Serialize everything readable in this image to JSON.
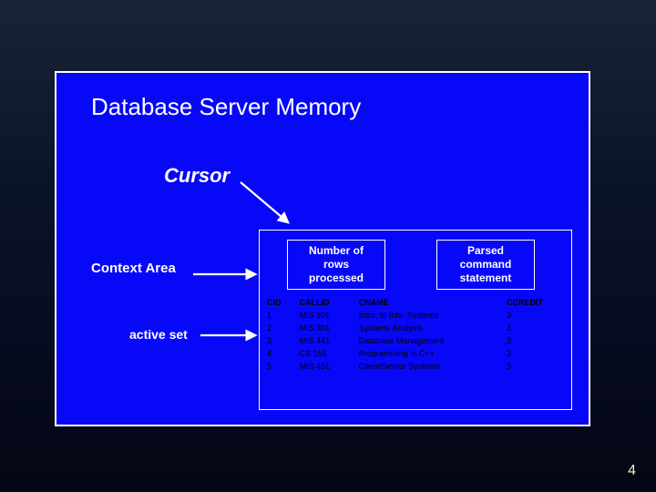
{
  "slide": {
    "title": "Database Server Memory",
    "cursor_label": "Cursor",
    "context_label": "Context Area",
    "active_label": "active set",
    "rows_box": "Number of\nrows\nprocessed",
    "parsed_box": "Parsed\ncommand\nstatement",
    "page_number": "4"
  },
  "table": {
    "columns": [
      "CID",
      "CALLID",
      "CNAME",
      "CCREDIT"
    ],
    "rows": [
      [
        "1",
        "MIS 101",
        "Intro. to Info. Systems",
        "3"
      ],
      [
        "2",
        "MIS 301",
        "Systems Analysis",
        "3"
      ],
      [
        "3",
        "MIS 441",
        "Database Management",
        "3"
      ],
      [
        "4",
        "CS 155",
        "Programming in C++",
        "3"
      ],
      [
        "5",
        "MIS 451",
        "Client/Server Systems",
        "3"
      ]
    ]
  },
  "style": {
    "arrow_color": "#ffffff"
  }
}
